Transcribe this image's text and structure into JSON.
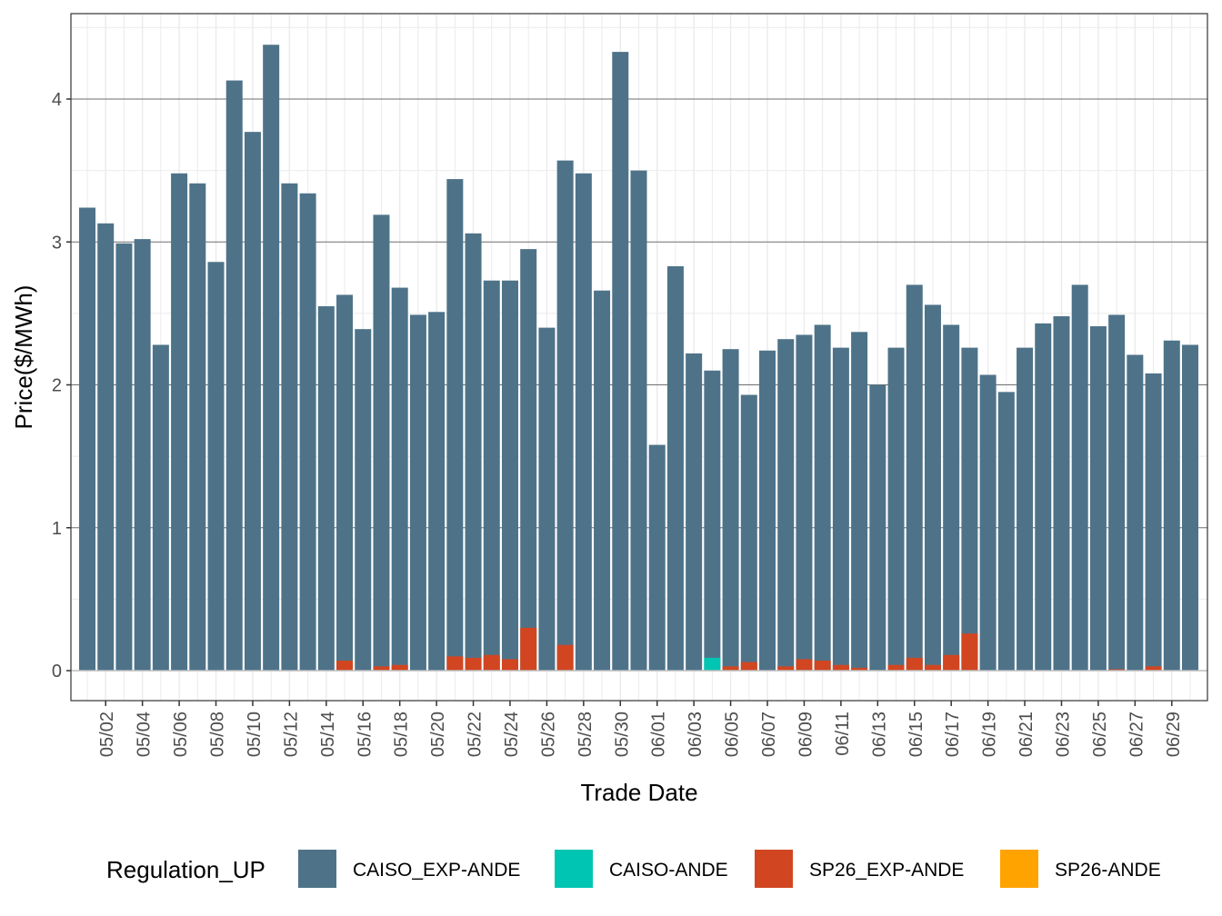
{
  "chart_data": {
    "type": "bar",
    "title": "",
    "xlabel": "Trade Date",
    "ylabel": "Price($/MWh)",
    "ylim": [
      -0.21,
      4.6
    ],
    "yticks": [
      0,
      1,
      2,
      3,
      4
    ],
    "grid": true,
    "bar_mode": "overlay",
    "legend": {
      "title": "Regulation_UP",
      "position": "bottom",
      "entries": [
        {
          "name": "CAISO_EXP-ANDE",
          "color": "#4e7389"
        },
        {
          "name": "CAISO-ANDE",
          "color": "#00c5b2"
        },
        {
          "name": "SP26_EXP-ANDE",
          "color": "#d14621"
        },
        {
          "name": "SP26-ANDE",
          "color": "#ffa300"
        }
      ]
    },
    "categories": [
      "05/01",
      "05/02",
      "05/03",
      "05/04",
      "05/05",
      "05/06",
      "05/07",
      "05/08",
      "05/09",
      "05/10",
      "05/11",
      "05/12",
      "05/13",
      "05/14",
      "05/15",
      "05/16",
      "05/17",
      "05/18",
      "05/19",
      "05/20",
      "05/21",
      "05/22",
      "05/23",
      "05/24",
      "05/25",
      "05/26",
      "05/27",
      "05/28",
      "05/29",
      "05/30",
      "05/31",
      "06/01",
      "06/02",
      "06/03",
      "06/04",
      "06/05",
      "06/06",
      "06/07",
      "06/08",
      "06/09",
      "06/10",
      "06/11",
      "06/12",
      "06/13",
      "06/14",
      "06/15",
      "06/16",
      "06/17",
      "06/18",
      "06/19",
      "06/20",
      "06/21",
      "06/22",
      "06/23",
      "06/24",
      "06/25",
      "06/26",
      "06/27",
      "06/28",
      "06/29",
      "06/30"
    ],
    "xtick_labels": [
      "05/02",
      "05/04",
      "05/06",
      "05/08",
      "05/10",
      "05/12",
      "05/14",
      "05/16",
      "05/18",
      "05/20",
      "05/22",
      "05/24",
      "05/26",
      "05/28",
      "05/30",
      "06/01",
      "06/03",
      "06/05",
      "06/07",
      "06/09",
      "06/11",
      "06/13",
      "06/15",
      "06/17",
      "06/19",
      "06/21",
      "06/23",
      "06/25",
      "06/27",
      "06/29"
    ],
    "series": [
      {
        "name": "CAISO_EXP-ANDE",
        "values": [
          3.24,
          3.13,
          2.99,
          3.02,
          2.28,
          3.48,
          3.41,
          2.86,
          4.13,
          3.77,
          4.38,
          3.41,
          3.34,
          2.55,
          2.63,
          2.39,
          3.19,
          2.68,
          2.49,
          2.51,
          3.44,
          3.06,
          2.73,
          2.73,
          2.95,
          2.4,
          3.57,
          3.48,
          2.66,
          4.33,
          3.5,
          1.58,
          2.83,
          2.22,
          2.1,
          2.25,
          1.93,
          2.24,
          2.32,
          2.35,
          2.42,
          2.26,
          2.37,
          2.0,
          2.26,
          2.7,
          2.56,
          2.42,
          2.26,
          2.07,
          1.95,
          2.26,
          2.43,
          2.48,
          2.7,
          2.41,
          2.49,
          2.21,
          2.08,
          2.31,
          2.28
        ]
      },
      {
        "name": "CAISO-ANDE",
        "values": [
          0,
          0,
          0,
          0,
          0,
          0,
          0,
          0,
          0,
          0,
          0,
          0,
          0,
          0,
          0,
          0,
          0,
          0,
          0,
          0,
          0,
          0,
          0,
          0,
          0,
          0,
          0,
          0,
          0,
          0,
          0,
          0,
          0,
          0,
          0.09,
          0,
          0,
          0,
          0,
          0,
          0,
          0,
          0,
          0,
          0,
          0,
          0,
          0,
          0,
          0,
          0,
          0,
          0,
          0,
          0,
          0,
          0,
          0,
          0,
          0,
          0
        ]
      },
      {
        "name": "SP26_EXP-ANDE",
        "values": [
          0,
          0,
          0,
          0,
          0,
          0,
          0,
          0,
          0,
          0,
          0,
          0,
          0,
          0,
          0.07,
          0,
          0.03,
          0.04,
          0,
          0,
          0.1,
          0.09,
          0.11,
          0.08,
          0.3,
          0,
          0.18,
          0,
          0,
          0,
          0,
          0,
          0,
          0,
          0,
          0.03,
          0.06,
          0,
          0.03,
          0.08,
          0.07,
          0.04,
          0.02,
          0,
          0.04,
          0.09,
          0.04,
          0.11,
          0.26,
          0,
          0,
          0,
          0,
          0,
          0,
          0,
          0.01,
          0,
          0.03,
          0,
          0
        ]
      },
      {
        "name": "SP26-ANDE",
        "values": [
          0,
          0,
          0,
          0,
          0,
          0,
          0,
          0,
          0,
          0,
          0,
          0,
          0,
          0,
          0,
          0,
          0,
          0,
          0,
          0,
          0,
          0,
          0,
          0,
          0,
          0,
          0,
          0,
          0,
          0,
          0,
          0,
          0,
          0,
          0,
          0,
          0,
          0,
          0,
          0,
          0,
          0,
          0,
          0,
          0,
          0,
          0,
          0,
          0,
          0,
          0,
          0,
          0,
          0,
          0,
          0,
          0,
          0,
          0,
          0,
          0
        ]
      }
    ]
  }
}
